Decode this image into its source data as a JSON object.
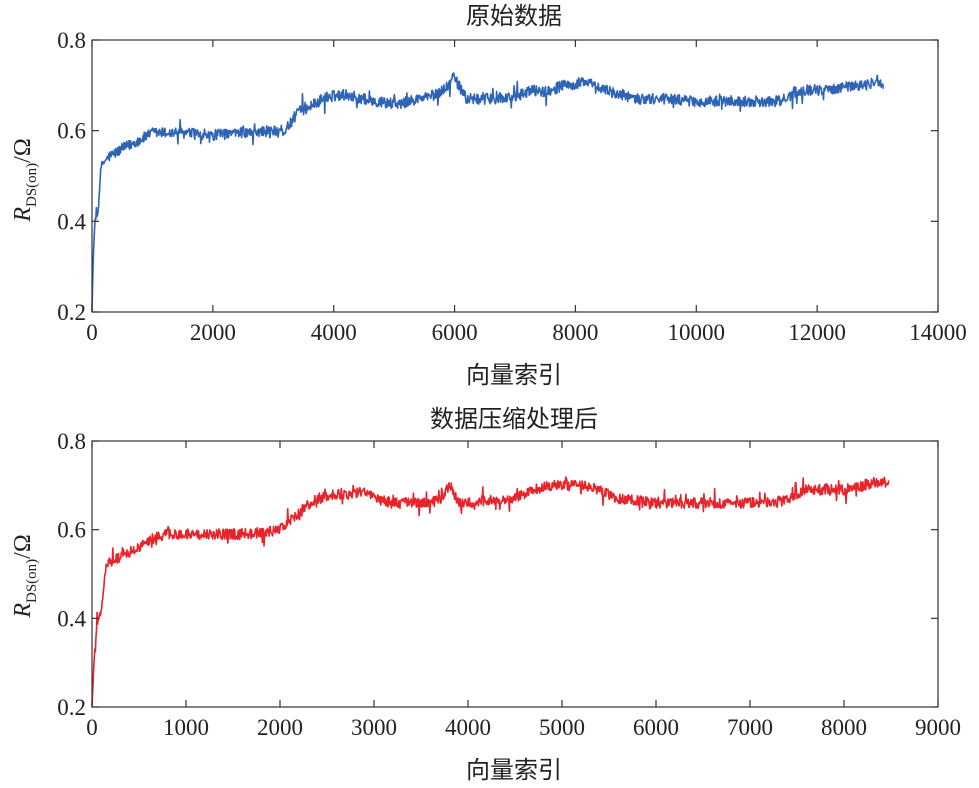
{
  "chart_data": [
    {
      "type": "line",
      "title": "原始数据",
      "xlabel": "向量索引",
      "ylabel": {
        "symbol": "R",
        "subscript": "DS(on)",
        "unit": "/Ω"
      },
      "xlim": [
        0,
        14000
      ],
      "ylim": [
        0.2,
        0.8
      ],
      "xticks": [
        "0",
        "2000",
        "4000",
        "6000",
        "8000",
        "10000",
        "12000",
        "14000"
      ],
      "yticks": [
        "0.2",
        "0.4",
        "0.6",
        "0.8"
      ],
      "grid": false,
      "legend": "none",
      "color": "#2E64B6",
      "n_points": 13100,
      "series": [
        {
          "x": [
            0,
            20,
            50,
            100,
            150,
            250,
            500,
            800,
            1000,
            1500,
            2000,
            2500,
            3000,
            3200,
            3400,
            3700,
            3900,
            4200,
            4500,
            4700,
            4900,
            5100,
            5400,
            5700,
            5900,
            6000,
            6100,
            6200,
            6400,
            6600,
            7000,
            7300,
            7500,
            7800,
            8000,
            8100,
            8300,
            8500,
            8700,
            9000,
            9500,
            10000,
            10500,
            11000,
            11400,
            11700,
            12000,
            12400,
            12600,
            12800,
            13000,
            13100
          ],
          "y": [
            0.2,
            0.32,
            0.4,
            0.42,
            0.52,
            0.54,
            0.56,
            0.58,
            0.595,
            0.595,
            0.59,
            0.595,
            0.6,
            0.6,
            0.64,
            0.66,
            0.675,
            0.68,
            0.67,
            0.665,
            0.66,
            0.66,
            0.67,
            0.68,
            0.7,
            0.72,
            0.69,
            0.67,
            0.67,
            0.67,
            0.675,
            0.69,
            0.685,
            0.7,
            0.7,
            0.71,
            0.7,
            0.69,
            0.68,
            0.67,
            0.67,
            0.665,
            0.665,
            0.665,
            0.665,
            0.69,
            0.69,
            0.695,
            0.7,
            0.7,
            0.71,
            0.7
          ]
        }
      ]
    },
    {
      "type": "line",
      "title": "数据压缩处理后",
      "xlabel": "向量索引",
      "ylabel": {
        "symbol": "R",
        "subscript": "DS(on)",
        "unit": "/Ω"
      },
      "xlim": [
        0,
        9000
      ],
      "ylim": [
        0.2,
        0.8
      ],
      "xticks": [
        "0",
        "1000",
        "2000",
        "3000",
        "4000",
        "5000",
        "6000",
        "7000",
        "8000",
        "9000"
      ],
      "yticks": [
        "0.2",
        "0.4",
        "0.6",
        "0.8"
      ],
      "grid": false,
      "legend": "none",
      "color": "#E8242A",
      "n_points": 8480,
      "series": [
        {
          "x": [
            0,
            20,
            50,
            80,
            100,
            150,
            300,
            500,
            650,
            800,
            1000,
            1300,
            1600,
            1900,
            2000,
            2100,
            2200,
            2400,
            2600,
            2800,
            2900,
            3000,
            3200,
            3500,
            3700,
            3800,
            3900,
            4000,
            4200,
            4500,
            4700,
            4900,
            5000,
            5200,
            5400,
            5600,
            5800,
            6000,
            6500,
            7000,
            7400,
            7600,
            8000,
            8200,
            8400,
            8480
          ],
          "y": [
            0.2,
            0.3,
            0.38,
            0.41,
            0.42,
            0.52,
            0.54,
            0.56,
            0.58,
            0.59,
            0.59,
            0.59,
            0.59,
            0.595,
            0.6,
            0.62,
            0.64,
            0.67,
            0.68,
            0.68,
            0.69,
            0.67,
            0.66,
            0.66,
            0.665,
            0.7,
            0.66,
            0.66,
            0.665,
            0.67,
            0.69,
            0.7,
            0.7,
            0.7,
            0.69,
            0.67,
            0.665,
            0.66,
            0.66,
            0.66,
            0.665,
            0.69,
            0.69,
            0.7,
            0.71,
            0.7
          ]
        }
      ]
    }
  ]
}
